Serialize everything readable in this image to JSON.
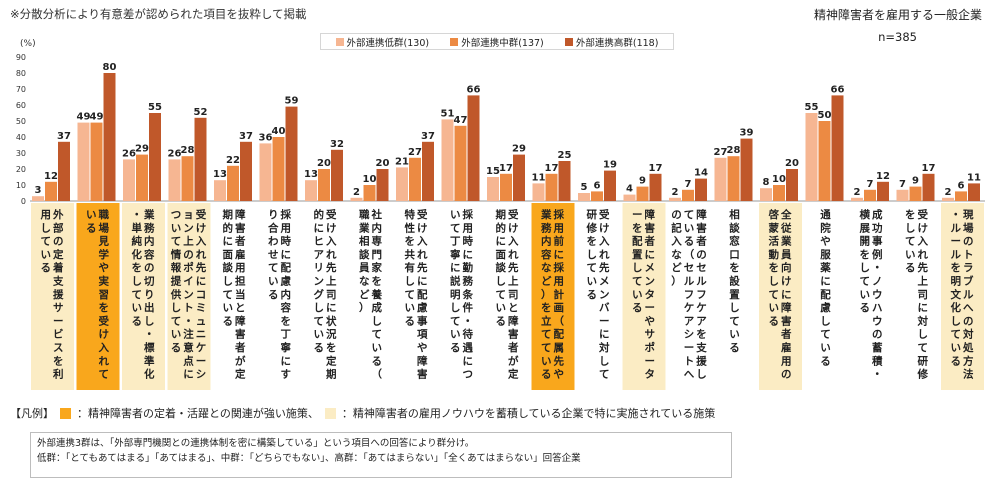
{
  "header": {
    "note": "※分散分析により有意差が認められた項目を抜粋して掲載",
    "subtitle": "精神障害者を雇用する一般企業",
    "n_label": "n=385"
  },
  "colors": {
    "low": "#f6b692",
    "mid": "#ec8a43",
    "high": "#c0582a",
    "highlight_orange": "#f9a71c",
    "highlight_cream": "#fbecc4"
  },
  "chart_data": {
    "type": "bar",
    "ylabel": "(%)",
    "ylim": [
      0,
      90
    ],
    "yticks": [
      0,
      10,
      20,
      30,
      40,
      50,
      60,
      70,
      80,
      90
    ],
    "series": [
      {
        "name": "外部連携低群(130)",
        "values": [
          3,
          49,
          26,
          26,
          13,
          36,
          13,
          2,
          21,
          51,
          15,
          11,
          5,
          4,
          2,
          27,
          8,
          55,
          2,
          7,
          2
        ]
      },
      {
        "name": "外部連携中群(137)",
        "values": [
          12,
          49,
          29,
          28,
          22,
          40,
          20,
          10,
          27,
          47,
          17,
          17,
          6,
          9,
          7,
          28,
          10,
          50,
          7,
          9,
          6
        ]
      },
      {
        "name": "外部連携高群(118)",
        "values": [
          37,
          80,
          55,
          52,
          37,
          59,
          32,
          20,
          37,
          66,
          29,
          25,
          19,
          17,
          14,
          39,
          20,
          66,
          12,
          17,
          11
        ]
      }
    ],
    "categories": [
      "外部の定着支援サービスを利用している",
      "職場見学や実習を受け入れている",
      "業務内容の切り出し・標準化・単純化をしている",
      "受け入れ先にコミュニケーション上のポイント・注意点について情報提供している",
      "障害者雇用担当と障害者が定期的に面談している",
      "採用時に配慮内容を丁寧にすり合わせている",
      "受け入れ先上司に状況を定期的にヒアリングしている",
      "社内専門家を養成している（職業相談員など）",
      "受け入れ先に配慮事項や障害特性を共有している",
      "採用時に勤務条件・待遇について丁寧に説明している",
      "受け入れ先上司と障害者が定期的に面談している",
      "採用前に採用計画（配属先や業務内容など）を立てている",
      "受け入れ先メンバーに対して研修をしている",
      "障害者にメンターやサポーターを配置している",
      "障害者のセルフケアを支援している（セルフケアシートへの記入など）",
      "相談窓口を設置している",
      "全従業員向けに障害者雇用の啓蒙活動をしている",
      "通院や服薬に配慮している",
      "成功事例・ノウハウの蓄積・横展開をしている",
      "受け入れ先上司に対して研修をしている",
      "現場のトラブルへの対処方法・ルールを明文化している"
    ],
    "category_highlight": [
      "cream",
      "orange",
      "cream",
      "cream",
      "none",
      "none",
      "none",
      "none",
      "none",
      "none",
      "none",
      "orange",
      "none",
      "cream",
      "none",
      "none",
      "cream",
      "none",
      "none",
      "none",
      "cream"
    ]
  },
  "footer": {
    "legend_title": "【凡例】",
    "legend_orange": "：精神障害者の定着・活躍との関連が強い施策、",
    "legend_cream": "：精神障害者の雇用ノウハウを蓄積している企業で特に実施されている施策",
    "note1": "外部連携3群は、「外部専門機関との連携体制を密に構築している」という項目への回答により群分け。",
    "note2": "低群：「とてもあてはまる」「あてはまる」、中群：「どちらでもない」、高群：「あてはまらない」「全くあてはまらない」回答企業"
  }
}
